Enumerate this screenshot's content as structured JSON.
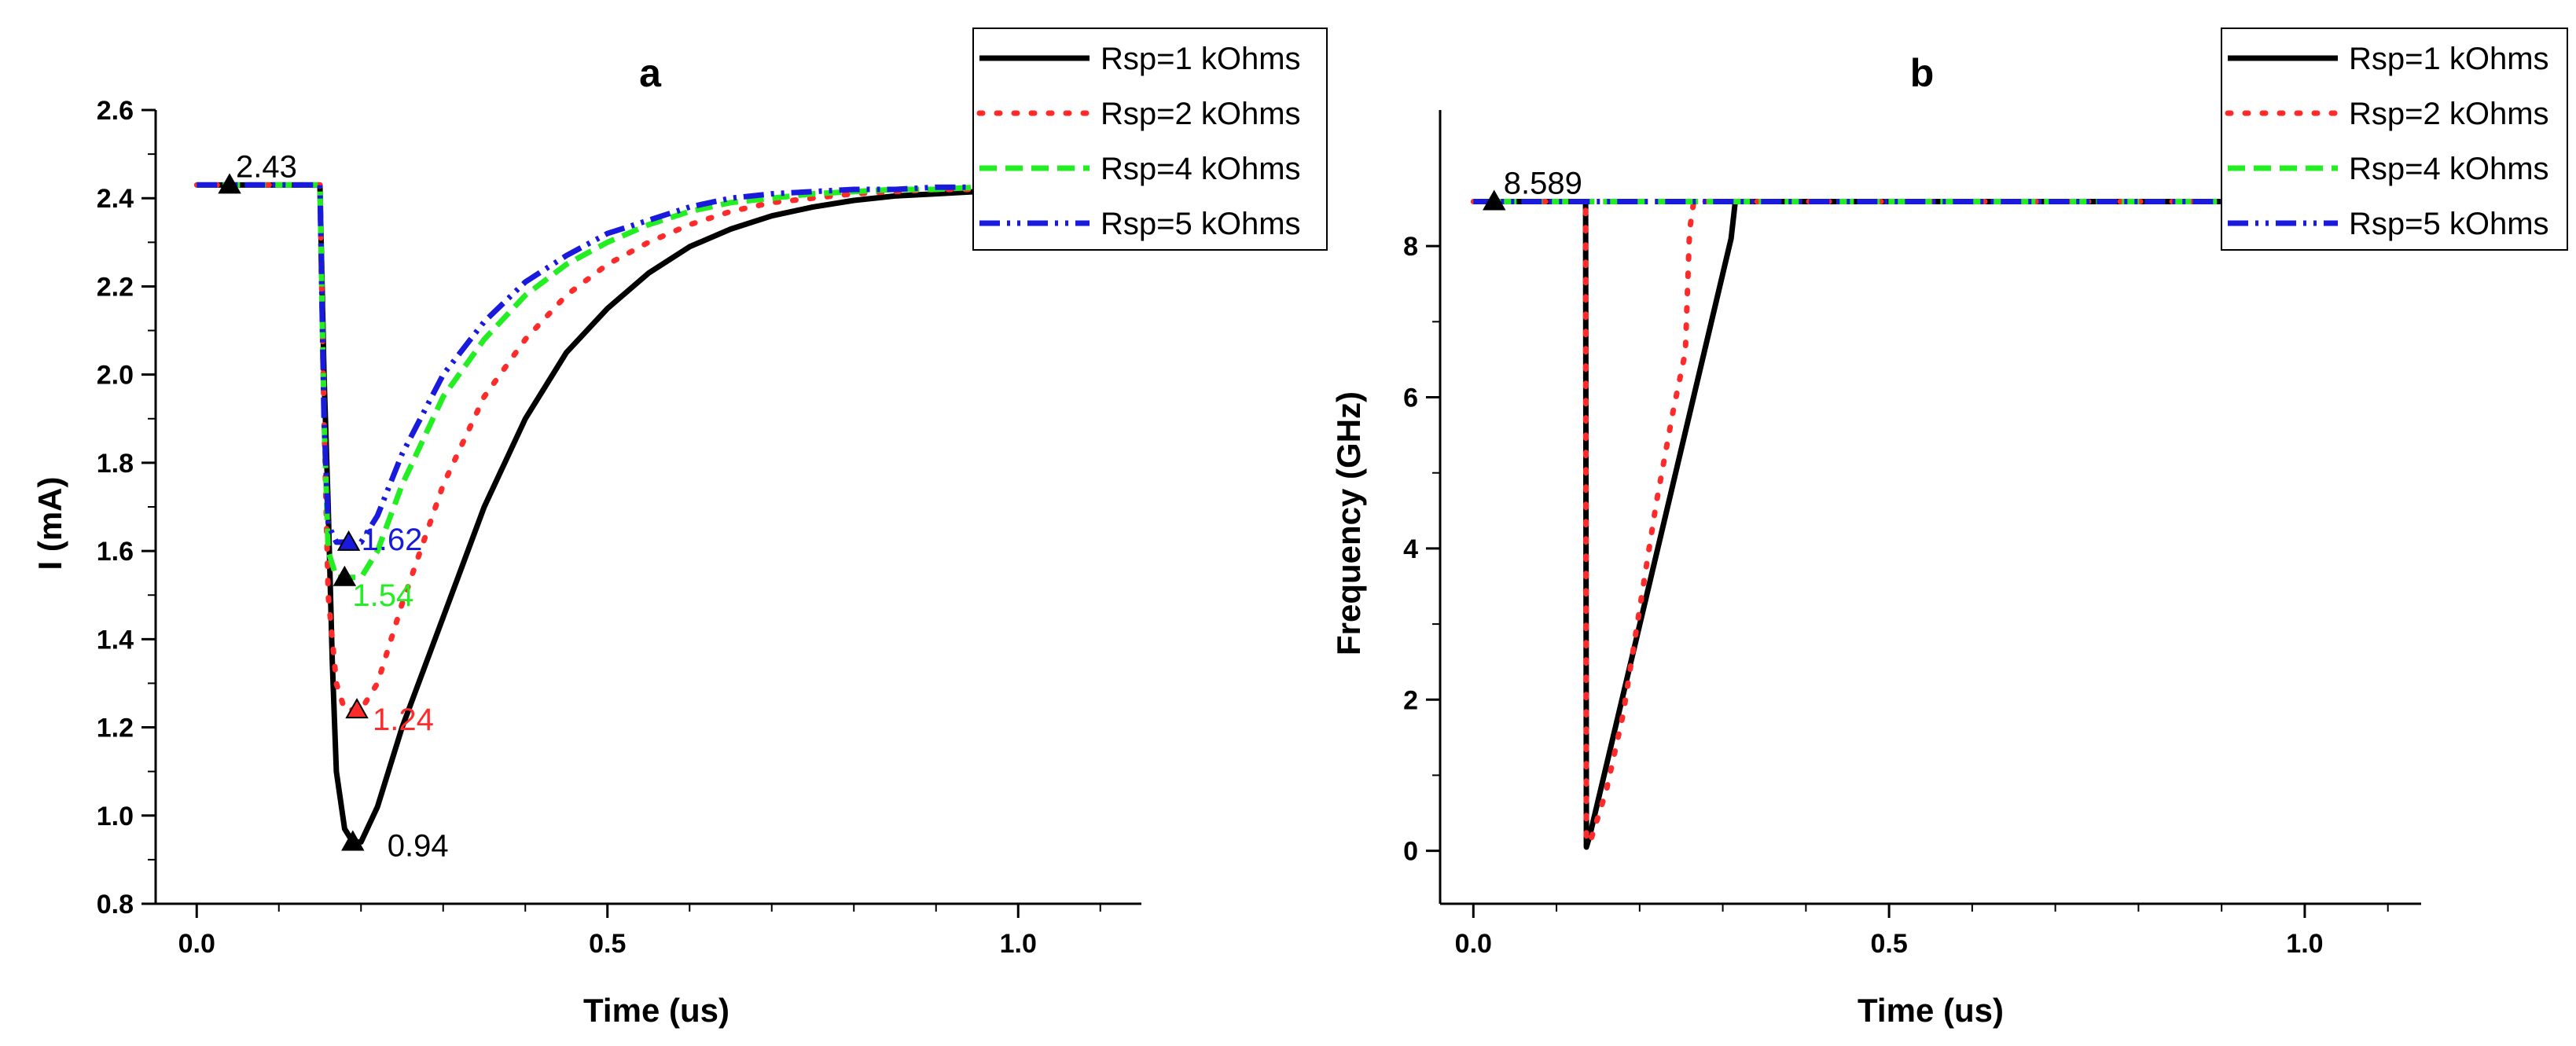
{
  "chart_data": [
    {
      "id": "a",
      "type": "line",
      "title": "a",
      "xlabel": "Time (us)",
      "ylabel": "I (mA)",
      "xlim": [
        -0.05,
        1.15
      ],
      "ylim": [
        0.8,
        2.6
      ],
      "xticks": [
        0.0,
        0.5,
        1.0
      ],
      "xtick_labels": [
        "0.0",
        "0.5",
        "1.0"
      ],
      "yticks": [
        0.8,
        1.0,
        1.2,
        1.4,
        1.6,
        1.8,
        2.0,
        2.2,
        2.4,
        2.6
      ],
      "ytick_labels": [
        "0.8",
        "1.0",
        "1.2",
        "1.4",
        "1.6",
        "1.8",
        "2.0",
        "2.2",
        "2.4",
        "2.6"
      ],
      "legend_position": "top-right",
      "series": [
        {
          "name": "Rsp=1 kOhms",
          "color": "#000000",
          "style": "solid",
          "x": [
            0,
            0.15,
            0.155,
            0.16,
            0.165,
            0.17,
            0.18,
            0.19,
            0.2,
            0.22,
            0.25,
            0.3,
            0.35,
            0.4,
            0.45,
            0.5,
            0.55,
            0.6,
            0.65,
            0.7,
            0.75,
            0.8,
            0.85,
            0.9,
            0.95,
            1.0,
            1.05
          ],
          "y": [
            2.43,
            2.43,
            2.0,
            1.7,
            1.35,
            1.1,
            0.97,
            0.94,
            0.94,
            1.02,
            1.2,
            1.45,
            1.7,
            1.9,
            2.05,
            2.15,
            2.23,
            2.29,
            2.33,
            2.36,
            2.38,
            2.395,
            2.405,
            2.41,
            2.415,
            2.42,
            2.42
          ]
        },
        {
          "name": "Rsp=2 kOhms",
          "color": "#ff2a2a",
          "style": "dotted",
          "x": [
            0,
            0.15,
            0.155,
            0.16,
            0.17,
            0.18,
            0.2,
            0.22,
            0.25,
            0.3,
            0.35,
            0.4,
            0.45,
            0.5,
            0.55,
            0.6,
            0.65,
            0.7,
            0.75,
            0.8,
            0.85,
            0.9,
            0.95,
            1.0,
            1.05
          ],
          "y": [
            2.43,
            2.43,
            1.9,
            1.5,
            1.3,
            1.24,
            1.24,
            1.3,
            1.48,
            1.75,
            1.95,
            2.08,
            2.18,
            2.25,
            2.3,
            2.34,
            2.37,
            2.39,
            2.4,
            2.41,
            2.415,
            2.42,
            2.42,
            2.425,
            2.425
          ]
        },
        {
          "name": "Rsp=4 kOhms",
          "color": "#22ee22",
          "style": "dashed",
          "x": [
            0,
            0.15,
            0.155,
            0.16,
            0.17,
            0.18,
            0.2,
            0.22,
            0.25,
            0.3,
            0.35,
            0.4,
            0.45,
            0.5,
            0.55,
            0.6,
            0.65,
            0.7,
            0.75,
            0.8,
            0.85,
            0.9,
            0.95,
            1.0,
            1.05
          ],
          "y": [
            2.43,
            2.43,
            1.9,
            1.6,
            1.54,
            1.54,
            1.54,
            1.6,
            1.75,
            1.95,
            2.08,
            2.18,
            2.25,
            2.3,
            2.34,
            2.37,
            2.39,
            2.4,
            2.41,
            2.415,
            2.42,
            2.42,
            2.425,
            2.425,
            2.425
          ]
        },
        {
          "name": "Rsp=5 kOhms",
          "color": "#1a1adc",
          "style": "dashdotdot",
          "x": [
            0,
            0.15,
            0.155,
            0.16,
            0.17,
            0.18,
            0.2,
            0.22,
            0.25,
            0.3,
            0.35,
            0.4,
            0.45,
            0.5,
            0.55,
            0.6,
            0.65,
            0.7,
            0.75,
            0.8,
            0.85,
            0.9,
            0.95,
            1.0,
            1.05
          ],
          "y": [
            2.43,
            2.43,
            1.9,
            1.66,
            1.62,
            1.62,
            1.62,
            1.68,
            1.82,
            2.0,
            2.12,
            2.21,
            2.27,
            2.32,
            2.35,
            2.38,
            2.4,
            2.41,
            2.415,
            2.42,
            2.42,
            2.425,
            2.425,
            2.43,
            2.43
          ]
        }
      ],
      "annotations": [
        {
          "text": "2.43",
          "x": 0.04,
          "y": 2.43,
          "color": "#000000",
          "marker_color": "#000000"
        },
        {
          "text": "1.62",
          "x": 0.185,
          "y": 1.62,
          "color": "#1a1adc",
          "marker_color": "#1a1adc"
        },
        {
          "text": "1.54",
          "x": 0.18,
          "y": 1.54,
          "color": "#22ee22",
          "marker_color": "#000000"
        },
        {
          "text": "1.24",
          "x": 0.195,
          "y": 1.24,
          "color": "#ff2a2a",
          "marker_color": "#ff2a2a"
        },
        {
          "text": "0.94",
          "x": 0.19,
          "y": 0.94,
          "color": "#000000",
          "marker_color": "#000000"
        }
      ]
    },
    {
      "id": "b",
      "type": "line",
      "title": "b",
      "xlabel": "Time (us)",
      "ylabel": "Frequency (GHz)",
      "xlim": [
        -0.04,
        1.14
      ],
      "ylim": [
        -0.7,
        9.8
      ],
      "xticks": [
        0.0,
        0.5,
        1.0
      ],
      "xtick_labels": [
        "0.0",
        "0.5",
        "1.0"
      ],
      "yticks": [
        0,
        2,
        4,
        6,
        8
      ],
      "ytick_labels": [
        "0",
        "2",
        "4",
        "6",
        "8"
      ],
      "legend_position": "top-right",
      "series": [
        {
          "name": "Rsp=1 kOhms",
          "color": "#000000",
          "style": "solid",
          "x": [
            0,
            0.135,
            0.136,
            0.14,
            0.31,
            0.315,
            0.32,
            0.33,
            1.1
          ],
          "y": [
            8.589,
            8.589,
            0.05,
            0.2,
            8.1,
            8.589,
            8.589,
            8.589,
            8.589
          ]
        },
        {
          "name": "Rsp=2 kOhms",
          "color": "#ff2a2a",
          "style": "dotted",
          "x": [
            0,
            0.135,
            0.136,
            0.14,
            0.16,
            0.18,
            0.2,
            0.22,
            0.24,
            0.255,
            0.26,
            0.265,
            1.1
          ],
          "y": [
            8.589,
            8.589,
            0.2,
            0.1,
            0.8,
            1.8,
            3.2,
            4.6,
            5.8,
            6.6,
            8.2,
            8.589,
            8.589
          ]
        },
        {
          "name": "Rsp=4 kOhms",
          "color": "#22ee22",
          "style": "dashed",
          "x": [
            0,
            1.1
          ],
          "y": [
            8.589,
            8.589
          ]
        },
        {
          "name": "Rsp=5 kOhms",
          "color": "#1a1adc",
          "style": "dashdotdot",
          "x": [
            0,
            1.1
          ],
          "y": [
            8.589,
            8.589
          ]
        }
      ],
      "annotations": [
        {
          "text": "8.589",
          "x": 0.025,
          "y": 8.589,
          "color": "#000000",
          "marker_color": "#000000"
        }
      ]
    }
  ]
}
